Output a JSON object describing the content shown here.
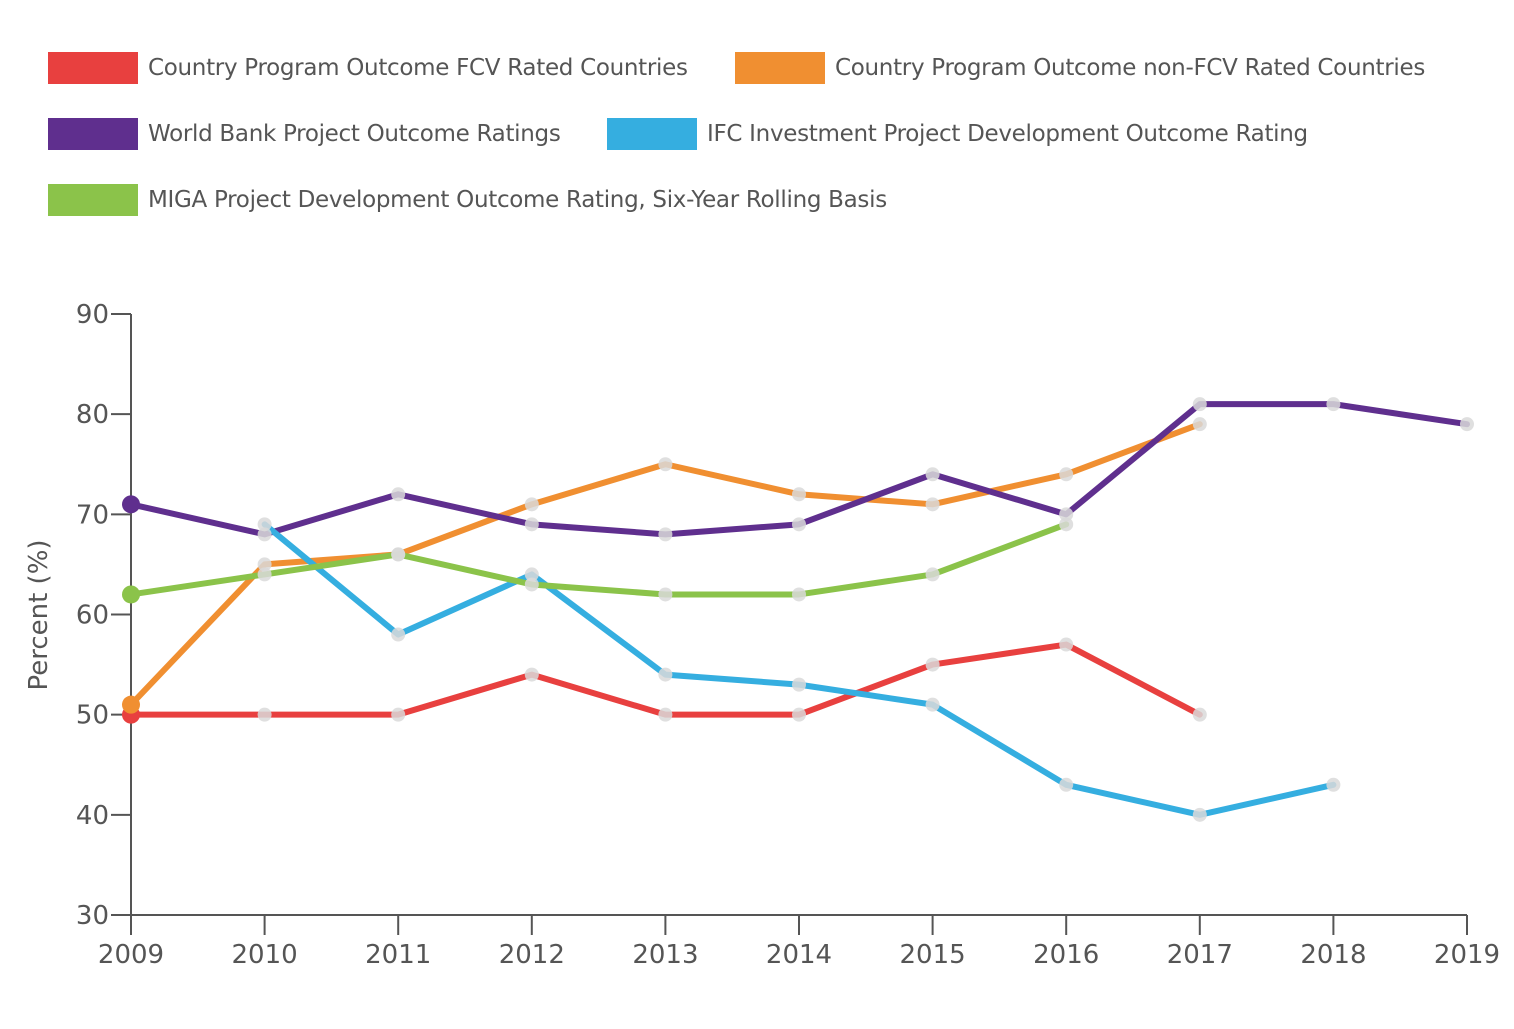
{
  "chart_data": {
    "type": "line",
    "title": "",
    "xlabel": "",
    "ylabel": "Percent (%)",
    "ylim": [
      30,
      90
    ],
    "yticks": [
      "30",
      "40",
      "50",
      "60",
      "70",
      "80",
      "90"
    ],
    "x": [
      "2009",
      "2010",
      "2011",
      "2012",
      "2013",
      "2014",
      "2015",
      "2016",
      "2017",
      "2018",
      "2019"
    ],
    "grid": false,
    "legend_position": "top",
    "series": [
      {
        "name": "Country Program Outcome FCV Rated Countries",
        "color": "#e8403f",
        "values": [
          50,
          50,
          50,
          54,
          50,
          50,
          55,
          57,
          50,
          null,
          null
        ]
      },
      {
        "name": "Country Program Outcome non-FCV Rated Countries",
        "color": "#f08f31",
        "values": [
          51,
          65,
          66,
          71,
          75,
          72,
          71,
          74,
          79,
          null,
          null
        ]
      },
      {
        "name": "World Bank Project Outcome Ratings",
        "color": "#5f2f8e",
        "values": [
          71,
          68,
          72,
          69,
          68,
          69,
          74,
          70,
          81,
          81,
          79
        ]
      },
      {
        "name": "IFC Investment Project Development Outcome Rating",
        "color": "#35aee0",
        "values": [
          null,
          69,
          58,
          64,
          54,
          53,
          51,
          43,
          40,
          43,
          null
        ]
      },
      {
        "name": "MIGA Project Development Outcome Rating, Six-Year Rolling Basis",
        "color": "#8bc34a",
        "values": [
          62,
          64,
          66,
          63,
          62,
          62,
          64,
          69,
          null,
          null,
          null
        ]
      }
    ]
  },
  "colors": {
    "axis": "#555555",
    "marker": "#d9d9d9"
  }
}
